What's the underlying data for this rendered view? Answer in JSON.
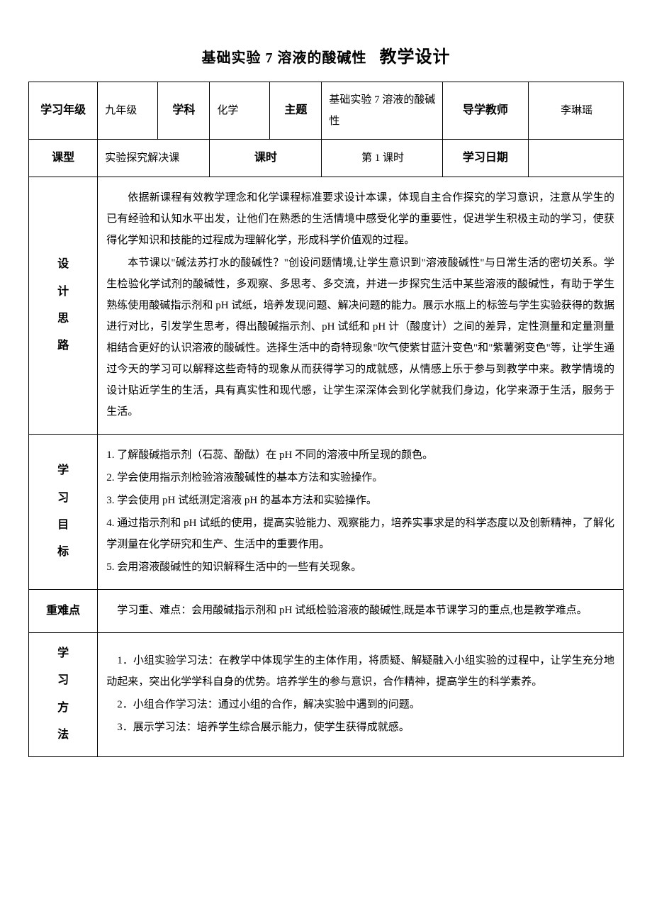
{
  "title": {
    "main": "基础实验 7 溶液的酸碱性",
    "suffix": "教学设计"
  },
  "header_row1": {
    "grade_label": "学习年级",
    "grade_value": "九年级",
    "subject_label": "学科",
    "subject_value": "化学",
    "topic_label": "主题",
    "topic_value": "基础实验 7 溶液的酸碱性",
    "teacher_label": "导学教师",
    "teacher_value": "李琳瑶"
  },
  "header_row2": {
    "type_label": "课型",
    "type_value": "实验探究解决课",
    "period_label": "课时",
    "period_value": "第 1 课时",
    "date_label": "学习日期",
    "date_value": ""
  },
  "sections": {
    "design": {
      "label": "设\n计\n思\n路",
      "p1": "依据新课程有效教学理念和化学课程标准要求设计本课，体现自主合作探究的学习意识，注意从学生的已有经验和认知水平出发，让他们在熟悉的生活情境中感受化学的重要性，促进学生积极主动的学习，使获得化学知识和技能的过程成为理解化学，形成科学价值观的过程。",
      "p2": "本节课以\"碱法苏打水的酸碱性？\"创设问题情境,让学生意识到\"溶液酸碱性\"与日常生活的密切关系。学生检验化学试剂的酸碱性，多观察、多思考、多交流，并进一步探究生活中某些溶液的酸碱性，有助于学生熟练使用酸碱指示剂和 pH 试纸，培养发现问题、解决问题的能力。展示水瓶上的标签与学生实验获得的数据进行对比，引发学生思考，得出酸碱指示剂、pH 试纸和 pH 计（酸度计）之间的差异，定性测量和定量测量相结合更好的认识溶液的酸碱性。选择生活中的奇特现象\"吹气使紫甘蓝汁变色\"和\"紫薯粥变色\"等，让学生通过今天的学习可以解释这些奇特的现象从而获得学习的成就感，从情感上乐于参与到教学中来。教学情境的设计贴近学生的生活，具有真实性和现代感，让学生深深体会到化学就我们身边，化学来源于生活，服务于生活。"
    },
    "objectives": {
      "label": "学\n习\n目\n标",
      "items": [
        "1. 了解酸碱指示剂（石蕊、酚酞）在 pH 不同的溶液中所呈现的颜色。",
        "2. 学会使用指示剂检验溶液酸碱性的基本方法和实验操作。",
        "3. 学会使用 pH 试纸测定溶液 pH 的基本方法和实验操作。",
        "4. 通过指示剂和 pH 试纸的使用，提高实验能力、观察能力，培养实事求是的科学态度以及创新精神，了解化学测量在化学研究和生产、生活中的重要作用。",
        "5. 会用溶液酸碱性的知识解释生活中的一些有关现象。"
      ]
    },
    "keypoints": {
      "label": "重难点",
      "text": "学习重、难点：会用酸碱指示剂和 pH 试纸检验溶液的酸碱性,既是本节课学习的重点,也是教学难点。"
    },
    "methods": {
      "label": "学\n习\n方\n法",
      "items": [
        "1．小组实验学习法：在教学中体现学生的主体作用，将质疑、解疑融入小组实验的过程中，让学生充分地动起来，突出化学学科自身的优势。培养学生的参与意识，合作精神，提高学生的科学素养。",
        "2．小组合作学习法：通过小组的合作，解决实验中遇到的问题。",
        "3．展示学习法：培养学生综合展示能力，使学生获得成就感。"
      ]
    }
  }
}
